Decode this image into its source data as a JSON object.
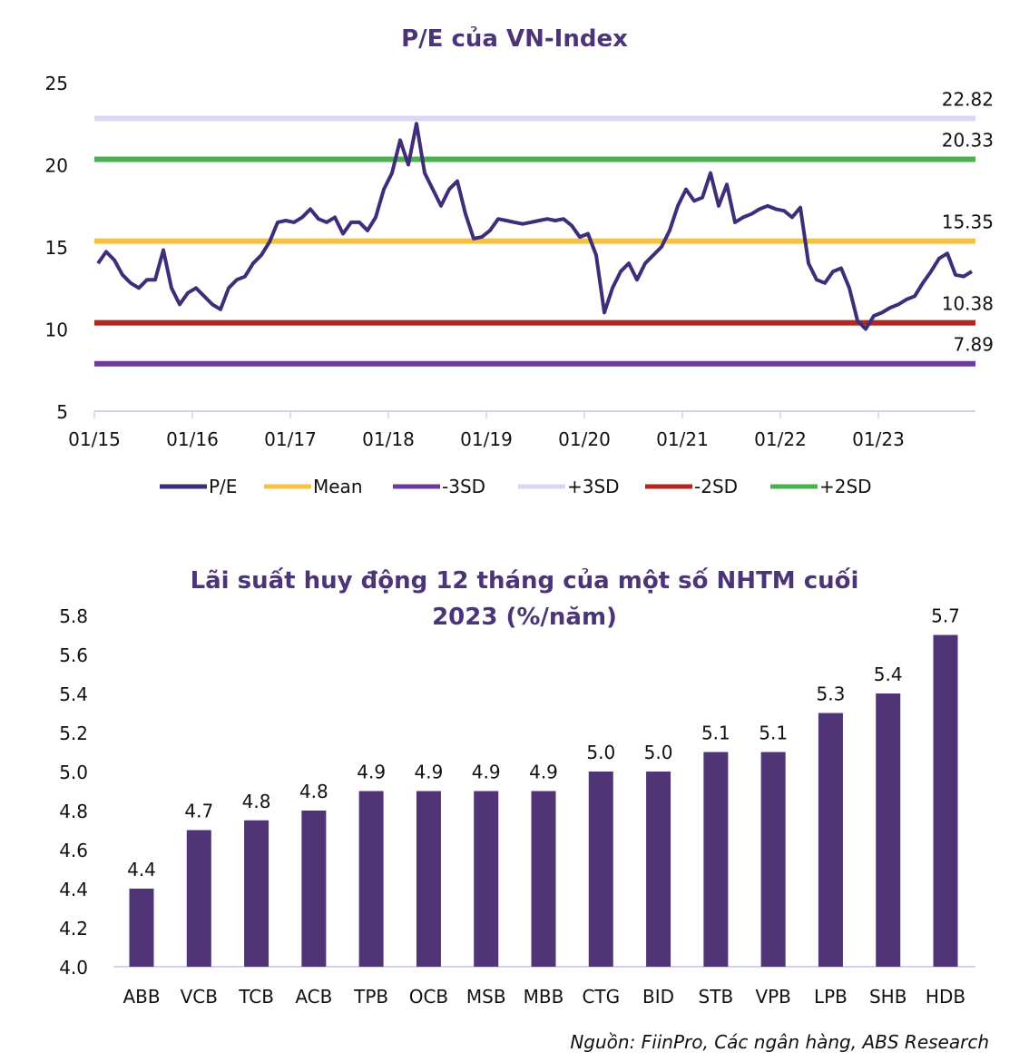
{
  "chart_data": [
    {
      "type": "line",
      "title": "P/E của VN-Index",
      "xlabel": "",
      "ylabel": "",
      "ylim": [
        5,
        25
      ],
      "yticks": [
        "5",
        "10",
        "15",
        "20",
        "25"
      ],
      "xticks": [
        "01/15",
        "01/16",
        "01/17",
        "01/18",
        "01/19",
        "01/20",
        "01/21",
        "01/22",
        "01/23"
      ],
      "x_start": "01/2015",
      "x_frequency": "monthly",
      "grid": false,
      "legend_position": "bottom",
      "series": [
        {
          "name": "P/E",
          "color": "#3f2d7a",
          "values": [
            14,
            14.7,
            14.2,
            13.3,
            12.8,
            12.5,
            13,
            13,
            14.8,
            12.5,
            11.5,
            12.2,
            12.5,
            12,
            11.5,
            11.2,
            12.5,
            13,
            13.2,
            14,
            14.5,
            15.3,
            16.5,
            16.6,
            16.5,
            16.8,
            17.3,
            16.7,
            16.5,
            16.8,
            15.8,
            16.5,
            16.5,
            16,
            16.8,
            18.5,
            19.5,
            21.5,
            20,
            22.5,
            19.5,
            18.5,
            17.5,
            18.5,
            19,
            17,
            15.5,
            15.6,
            16,
            16.7,
            16.6,
            16.5,
            16.4,
            16.5,
            16.6,
            16.7,
            16.6,
            16.7,
            16.3,
            15.6,
            15.8,
            14.5,
            11,
            12.5,
            13.5,
            14,
            13,
            14,
            14.5,
            15,
            16,
            17.5,
            18.5,
            17.8,
            18,
            19.5,
            17.5,
            18.8,
            16.5,
            16.8,
            17,
            17.3,
            17.5,
            17.3,
            17.2,
            16.8,
            17.4,
            14,
            13,
            12.8,
            13.5,
            13.7,
            12.5,
            10.5,
            10,
            10.8,
            11,
            11.3,
            11.5,
            11.8,
            12,
            12.8,
            13.5,
            14.3,
            14.6,
            13.3,
            13.2,
            13.5
          ]
        },
        {
          "name": "Mean",
          "color": "#f5c242",
          "value": 15.35,
          "label": "15.35"
        },
        {
          "name": "-3SD",
          "color": "#6f3a9e",
          "value": 7.89,
          "label": "7.89"
        },
        {
          "name": "+3SD",
          "color": "#dcd6f2",
          "value": 22.82,
          "label": "22.82"
        },
        {
          "name": "-2SD",
          "color": "#b3261e",
          "value": 10.38,
          "label": "10.38"
        },
        {
          "name": "+2SD",
          "color": "#4caf50",
          "value": 20.33,
          "label": "20.33"
        }
      ]
    },
    {
      "type": "bar",
      "title": "Lãi suất huy động 12 tháng của một số NHTM cuối",
      "title_line2": "2023 (%/năm)",
      "xlabel": "",
      "ylabel": "",
      "ylim": [
        4.0,
        5.8
      ],
      "yticks": [
        "4.0",
        "4.2",
        "4.4",
        "4.6",
        "4.8",
        "5.0",
        "5.2",
        "5.4",
        "5.6",
        "5.8"
      ],
      "color": "#4f3575",
      "categories": [
        "ABB",
        "VCB",
        "TCB",
        "ACB",
        "TPB",
        "OCB",
        "MSB",
        "MBB",
        "CTG",
        "BID",
        "STB",
        "VPB",
        "LPB",
        "SHB",
        "HDB"
      ],
      "values": [
        4.4,
        4.7,
        4.75,
        4.8,
        4.9,
        4.9,
        4.9,
        4.9,
        5.0,
        5.0,
        5.1,
        5.1,
        5.3,
        5.4,
        5.7
      ],
      "data_labels": [
        "4.4",
        "4.7",
        "4.8",
        "4.8",
        "4.9",
        "4.9",
        "4.9",
        "4.9",
        "5.0",
        "5.0",
        "5.1",
        "5.1",
        "5.3",
        "5.4",
        "5.7"
      ]
    }
  ],
  "source": "Nguồn: FiinPro, Các ngân hàng, ABS Research"
}
